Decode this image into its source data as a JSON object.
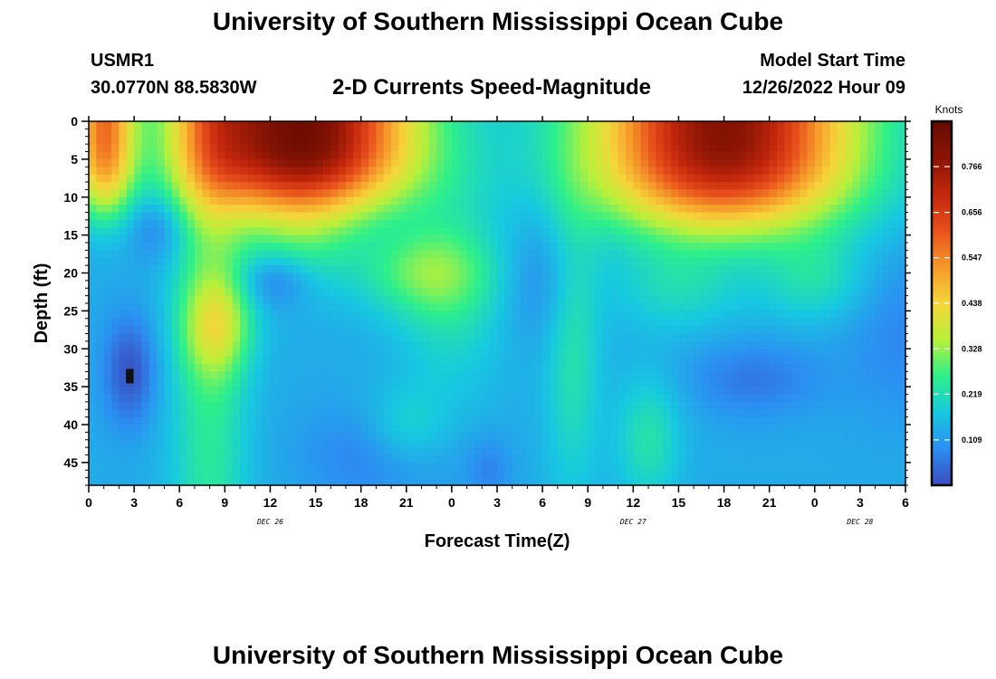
{
  "header": {
    "title": "University of Southern Mississippi Ocean Cube",
    "station": "USMR1",
    "coords": "30.0770N  88.5830W",
    "subtitle": "2-D Currents Speed-Magnitude",
    "model_start_label": "Model Start Time",
    "model_start_value": "12/26/2022 Hour 09"
  },
  "footer": {
    "title": "University of Southern Mississippi Ocean Cube"
  },
  "chart_data": {
    "type": "heatmap",
    "title": "2-D Currents Speed-Magnitude",
    "xlabel": "Forecast Time(Z)",
    "ylabel": "Depth (ft)",
    "x_hours_range": [
      0,
      54
    ],
    "x_tick_labels": [
      "0",
      "3",
      "6",
      "9",
      "12",
      "15",
      "18",
      "21",
      "0",
      "3",
      "6",
      "9",
      "12",
      "15",
      "18",
      "21",
      "0",
      "3",
      "6"
    ],
    "date_labels": [
      {
        "label": "DEC 26",
        "at_hour": 12
      },
      {
        "label": "DEC 27",
        "at_hour": 36
      },
      {
        "label": "DEC 28",
        "at_hour": 51
      }
    ],
    "y_range": [
      0,
      48
    ],
    "y_ticks": [
      0,
      5,
      10,
      15,
      20,
      25,
      30,
      35,
      40,
      45
    ],
    "y_inverted": true,
    "colorbar": {
      "title": "Knots",
      "range": [
        0,
        0.875
      ],
      "ticks": [
        0.109,
        0.219,
        0.328,
        0.438,
        0.547,
        0.656,
        0.766
      ]
    },
    "colors": [
      "#3b4cc0",
      "#2c8ef2",
      "#17c9e0",
      "#2ef08a",
      "#b9f03a",
      "#f6d53a",
      "#f6982a",
      "#e8501c",
      "#c3270c",
      "#8a1405",
      "#660b00"
    ],
    "field_features": [
      {
        "hour": 13.5,
        "depth": 3,
        "speed": 0.8
      },
      {
        "hour": 42,
        "depth": 4,
        "speed": 0.76
      },
      {
        "hour": 1,
        "depth": 7,
        "speed": 0.55
      },
      {
        "hour": 8.5,
        "depth": 27,
        "speed": 0.35
      },
      {
        "hour": 3,
        "depth": 33,
        "speed": 0.0
      },
      {
        "hour": 20,
        "depth": 44,
        "speed": 0.03
      },
      {
        "hour": 44,
        "depth": 34,
        "speed": 0.04
      },
      {
        "hour": 4.5,
        "depth": 14,
        "speed": 0.1
      },
      {
        "hour": 12.5,
        "depth": 21,
        "speed": 0.08
      },
      {
        "hour": 30,
        "depth": 22,
        "speed": 0.06
      },
      {
        "hour": 26.5,
        "depth": 46,
        "speed": 0.05
      }
    ]
  }
}
